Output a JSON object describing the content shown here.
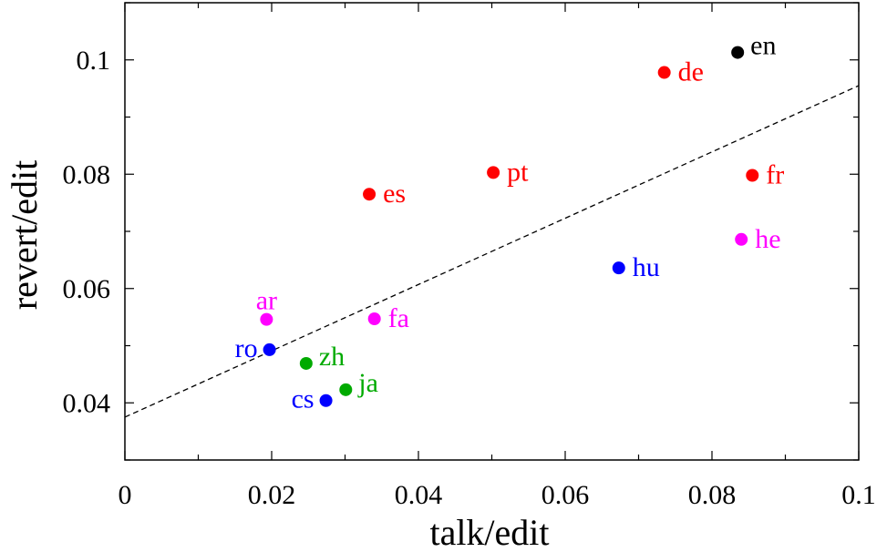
{
  "chart_data": {
    "type": "scatter",
    "title": "",
    "xlabel": "talk/edit",
    "ylabel": "revert/edit",
    "xlim": [
      0,
      0.1
    ],
    "ylim": [
      0.03,
      0.11
    ],
    "xticks": [
      0,
      0.02,
      0.04,
      0.06,
      0.08,
      0.1
    ],
    "xtick_labels": [
      "0",
      "0.02",
      "0.04",
      "0.06",
      "0.08",
      "0.1"
    ],
    "yticks": [
      0.04,
      0.06,
      0.08,
      0.1
    ],
    "ytick_labels": [
      "0.04",
      "0.06",
      "0.08",
      "0.1"
    ],
    "grid": false,
    "legend": "none",
    "fit_line": {
      "style": "dashed",
      "color": "#000000",
      "points": [
        [
          0,
          0.0375
        ],
        [
          0.1,
          0.0955
        ]
      ]
    },
    "points": [
      {
        "label": "en",
        "x": 0.0835,
        "y": 0.1013,
        "color": "#000000",
        "label_side": "right-up"
      },
      {
        "label": "de",
        "x": 0.0735,
        "y": 0.0978,
        "color": "#ff0000",
        "label_side": "right"
      },
      {
        "label": "fr",
        "x": 0.0855,
        "y": 0.0798,
        "color": "#ff0000",
        "label_side": "right"
      },
      {
        "label": "pt",
        "x": 0.0502,
        "y": 0.0803,
        "color": "#ff0000",
        "label_side": "right"
      },
      {
        "label": "es",
        "x": 0.0333,
        "y": 0.0765,
        "color": "#ff0000",
        "label_side": "right"
      },
      {
        "label": "he",
        "x": 0.084,
        "y": 0.0686,
        "color": "#ff00ff",
        "label_side": "right"
      },
      {
        "label": "hu",
        "x": 0.0673,
        "y": 0.0636,
        "color": "#0000ff",
        "label_side": "right"
      },
      {
        "label": "ar",
        "x": 0.0193,
        "y": 0.0546,
        "color": "#ff00ff",
        "label_side": "above"
      },
      {
        "label": "fa",
        "x": 0.034,
        "y": 0.0547,
        "color": "#ff00ff",
        "label_side": "right"
      },
      {
        "label": "ro",
        "x": 0.0197,
        "y": 0.0493,
        "color": "#0000ff",
        "label_side": "left"
      },
      {
        "label": "zh",
        "x": 0.0247,
        "y": 0.0469,
        "color": "#00aa00",
        "label_side": "right-up"
      },
      {
        "label": "ja",
        "x": 0.0301,
        "y": 0.0423,
        "color": "#00aa00",
        "label_side": "right-up"
      },
      {
        "label": "cs",
        "x": 0.0274,
        "y": 0.0404,
        "color": "#0000ff",
        "label_side": "left"
      }
    ]
  }
}
